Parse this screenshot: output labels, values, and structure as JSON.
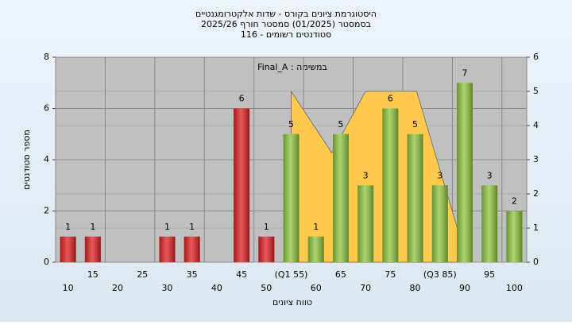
{
  "chart_data": {
    "type": "bar",
    "title": "היסטוגרמת ציונים בקורס - שדות אלקטרומגנטיים",
    "subtitle": "בסמסטר  (01/2025)  סמסטר חורף 2025/26",
    "subtitle2": "סטודנטים רשומים - 116",
    "annotation": "במשימה : Final_A",
    "x_label": "טווח ציונים",
    "y_label": "מספר סטודנטים",
    "categories": [
      "10",
      "15",
      "20",
      "25",
      "30",
      "35",
      "40",
      "45",
      "50",
      "(Q1 55)",
      "60",
      "65",
      "70",
      "75",
      "80",
      "(Q3 85)",
      "90",
      "95",
      "100"
    ],
    "values": [
      1,
      1,
      0,
      0,
      1,
      1,
      0,
      6,
      1,
      5,
      1,
      5,
      3,
      6,
      5,
      3,
      7,
      3,
      2
    ],
    "colors": [
      "#e02020",
      "#e02020",
      "#e02020",
      "#e02020",
      "#e02020",
      "#e02020",
      "#e02020",
      "#e02020",
      "#e02020",
      "#8ec63f",
      "#8ec63f",
      "#8ec63f",
      "#8ec63f",
      "#8ec63f",
      "#8ec63f",
      "#8ec63f",
      "#8ec63f",
      "#8ec63f",
      "#8ec63f"
    ],
    "ylim": [
      0,
      8
    ],
    "yticks": [
      0,
      2,
      4,
      6,
      8
    ],
    "y2lim": [
      0,
      6
    ],
    "y2ticks": [
      0,
      1,
      2,
      3,
      4,
      5,
      6
    ],
    "area": {
      "axis": "y2",
      "color": "#ffc94d",
      "x": [
        55,
        63.2,
        70,
        80.3,
        88.7
      ],
      "values": [
        5,
        3.2,
        5,
        5,
        0.9
      ]
    },
    "grid": true
  }
}
